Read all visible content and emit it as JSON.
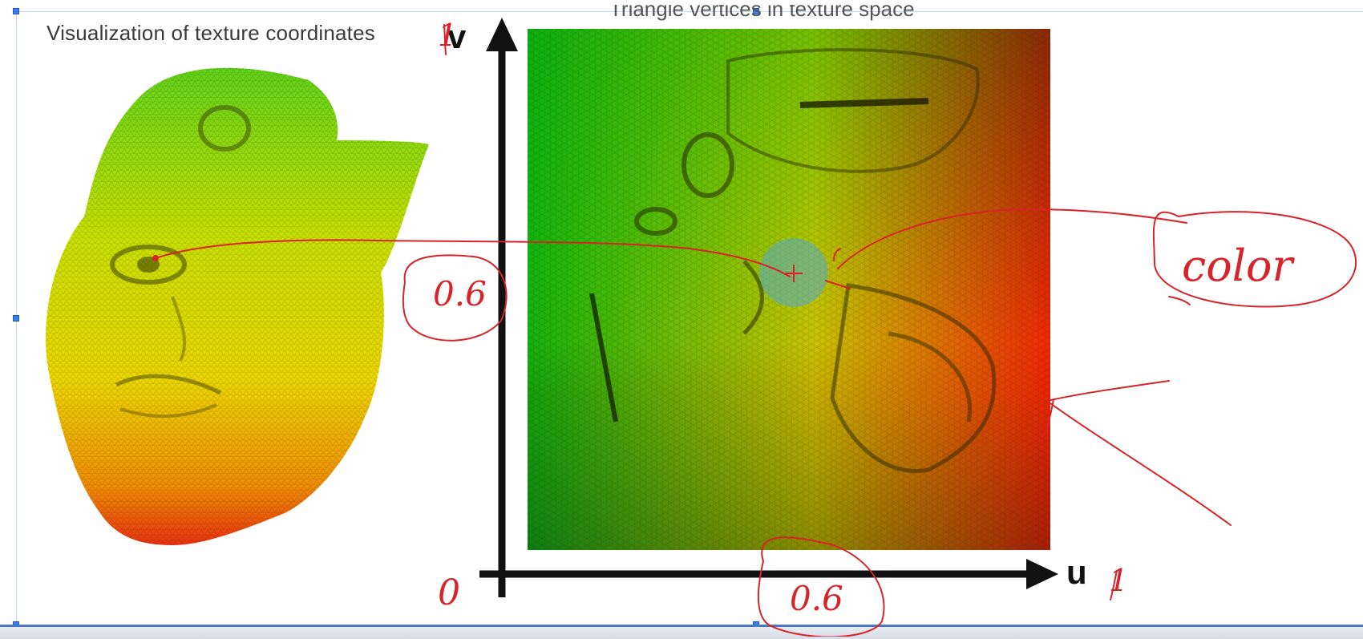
{
  "slide": {
    "title_left": "Visualization of texture coordinates",
    "title_top": "Triangle vertices in texture space"
  },
  "axes": {
    "v_label": "v",
    "u_label": "u"
  },
  "annotations": {
    "v_value": "0.6",
    "u_value": "0.6",
    "color_word": "color",
    "origin": "0",
    "u_max": "1",
    "v_max": "1"
  },
  "colors": {
    "annotation": "#d8232a",
    "selection_handle": "#3c7df0",
    "axis": "#111111",
    "cursor_highlight": "#5aaabe"
  },
  "icons": {
    "cursor": "crosshair-cursor-icon"
  }
}
